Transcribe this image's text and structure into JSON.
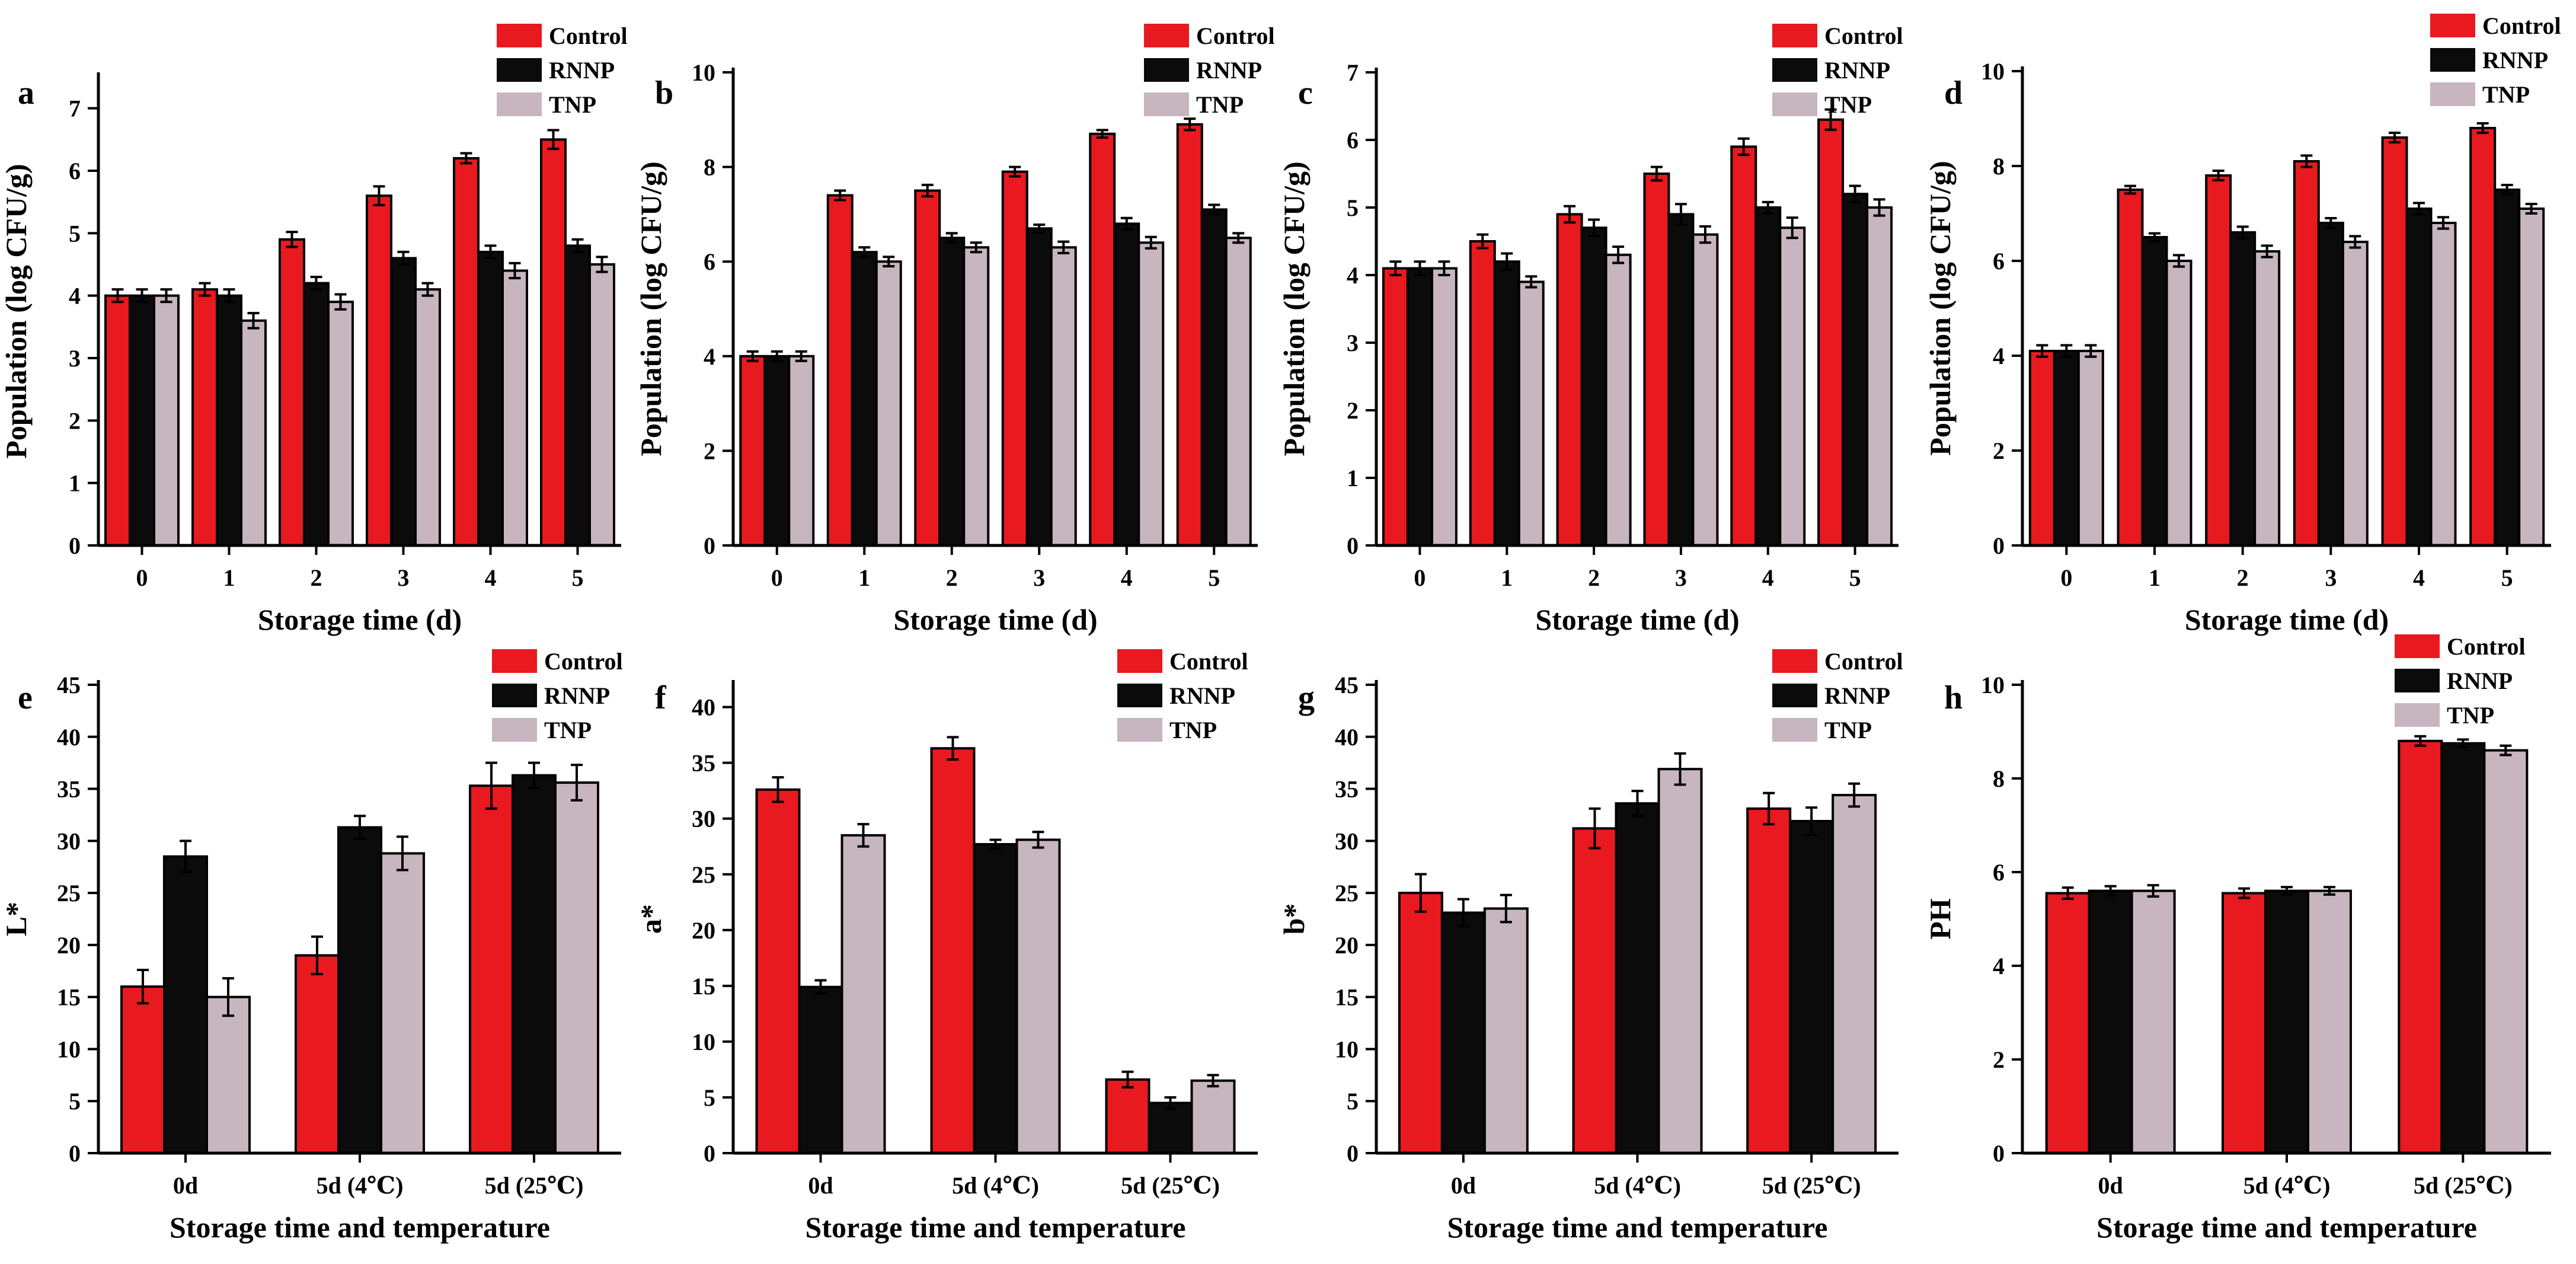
{
  "figure": {
    "legend": [
      {
        "name": "Control",
        "color": "#e8191f"
      },
      {
        "name": "RNNP",
        "color": "#0b0b0b"
      },
      {
        "name": "TNP",
        "color": "#c7b5bf"
      }
    ]
  },
  "chart_data": [
    {
      "panel": "a",
      "type": "bar",
      "categories": [
        "0",
        "1",
        "2",
        "3",
        "4",
        "5"
      ],
      "xlabel": "Storage time (d)",
      "ylabel": "Population (log CFU/g)",
      "ylim": [
        0,
        7.5
      ],
      "yticks": [
        0,
        1,
        2,
        3,
        4,
        5,
        6,
        7
      ],
      "series": [
        {
          "name": "Control",
          "values": [
            4.0,
            4.1,
            4.9,
            5.6,
            6.2,
            6.5
          ],
          "errors": [
            0.1,
            0.1,
            0.12,
            0.15,
            0.08,
            0.15
          ]
        },
        {
          "name": "RNNP",
          "values": [
            4.0,
            4.0,
            4.2,
            4.6,
            4.7,
            4.8
          ],
          "errors": [
            0.1,
            0.1,
            0.1,
            0.1,
            0.1,
            0.1
          ]
        },
        {
          "name": "TNP",
          "values": [
            4.0,
            3.6,
            3.9,
            4.1,
            4.4,
            4.5
          ],
          "errors": [
            0.1,
            0.12,
            0.12,
            0.1,
            0.12,
            0.12
          ]
        }
      ]
    },
    {
      "panel": "b",
      "type": "bar",
      "categories": [
        "0",
        "1",
        "2",
        "3",
        "4",
        "5"
      ],
      "xlabel": "Storage time (d)",
      "ylabel": "Population (log CFU/g)",
      "ylim": [
        0,
        10
      ],
      "yticks": [
        0,
        2,
        4,
        6,
        8,
        10
      ],
      "series": [
        {
          "name": "Control",
          "values": [
            4.0,
            7.4,
            7.5,
            7.9,
            8.7,
            8.9
          ],
          "errors": [
            0.1,
            0.1,
            0.12,
            0.1,
            0.08,
            0.12
          ]
        },
        {
          "name": "RNNP",
          "values": [
            4.0,
            6.2,
            6.5,
            6.7,
            6.8,
            7.1
          ],
          "errors": [
            0.1,
            0.1,
            0.1,
            0.08,
            0.12,
            0.1
          ]
        },
        {
          "name": "TNP",
          "values": [
            4.0,
            6.0,
            6.3,
            6.3,
            6.4,
            6.5
          ],
          "errors": [
            0.1,
            0.1,
            0.1,
            0.12,
            0.12,
            0.1
          ]
        }
      ]
    },
    {
      "panel": "c",
      "type": "bar",
      "categories": [
        "0",
        "1",
        "2",
        "3",
        "4",
        "5"
      ],
      "xlabel": "Storage time (d)",
      "ylabel": "Population (log CFU/g)",
      "ylim": [
        0,
        7
      ],
      "yticks": [
        0,
        1,
        2,
        3,
        4,
        5,
        6,
        7
      ],
      "series": [
        {
          "name": "Control",
          "values": [
            4.1,
            4.5,
            4.9,
            5.5,
            5.9,
            6.3
          ],
          "errors": [
            0.1,
            0.1,
            0.12,
            0.1,
            0.12,
            0.15
          ]
        },
        {
          "name": "RNNP",
          "values": [
            4.1,
            4.2,
            4.7,
            4.9,
            5.0,
            5.2
          ],
          "errors": [
            0.1,
            0.12,
            0.12,
            0.15,
            0.08,
            0.12
          ]
        },
        {
          "name": "TNP",
          "values": [
            4.1,
            3.9,
            4.3,
            4.6,
            4.7,
            5.0
          ],
          "errors": [
            0.1,
            0.08,
            0.12,
            0.12,
            0.15,
            0.12
          ]
        }
      ]
    },
    {
      "panel": "d",
      "type": "bar",
      "categories": [
        "0",
        "1",
        "2",
        "3",
        "4",
        "5"
      ],
      "xlabel": "Storage time (d)",
      "ylabel": "Population (log CFU/g)",
      "ylim": [
        0,
        10
      ],
      "yticks": [
        0,
        2,
        4,
        6,
        8,
        10
      ],
      "series": [
        {
          "name": "Control",
          "values": [
            4.1,
            7.5,
            7.8,
            8.1,
            8.6,
            8.8
          ],
          "errors": [
            0.12,
            0.08,
            0.1,
            0.12,
            0.1,
            0.1
          ]
        },
        {
          "name": "RNNP",
          "values": [
            4.1,
            6.5,
            6.6,
            6.8,
            7.1,
            7.5
          ],
          "errors": [
            0.12,
            0.08,
            0.12,
            0.1,
            0.12,
            0.1
          ]
        },
        {
          "name": "TNP",
          "values": [
            4.1,
            6.0,
            6.2,
            6.4,
            6.8,
            7.1
          ],
          "errors": [
            0.12,
            0.12,
            0.12,
            0.12,
            0.12,
            0.1
          ]
        }
      ]
    },
    {
      "panel": "e",
      "type": "bar",
      "categories": [
        "0d",
        "5d (4℃)",
        "5d (25℃)"
      ],
      "xlabel": "Storage time and temperature",
      "ylabel": "L*",
      "ylim": [
        0,
        45
      ],
      "yticks": [
        0,
        5,
        10,
        15,
        20,
        25,
        30,
        35,
        40,
        45
      ],
      "series": [
        {
          "name": "Control",
          "values": [
            16.0,
            19.0,
            35.3
          ],
          "errors": [
            1.6,
            1.8,
            2.2
          ]
        },
        {
          "name": "RNNP",
          "values": [
            28.5,
            31.3,
            36.3
          ],
          "errors": [
            1.5,
            1.1,
            1.2
          ]
        },
        {
          "name": "TNP",
          "values": [
            15.0,
            28.8,
            35.6
          ],
          "errors": [
            1.8,
            1.6,
            1.7
          ]
        }
      ]
    },
    {
      "panel": "f",
      "type": "bar",
      "categories": [
        "0d",
        "5d (4℃)",
        "5d (25℃)"
      ],
      "xlabel": "Storage time and temperature",
      "ylabel": "a*",
      "ylim": [
        0,
        42
      ],
      "yticks": [
        0,
        5,
        10,
        15,
        20,
        25,
        30,
        35,
        40
      ],
      "series": [
        {
          "name": "Control",
          "values": [
            32.6,
            36.3,
            6.6
          ],
          "errors": [
            1.1,
            1.0,
            0.7
          ]
        },
        {
          "name": "RNNP",
          "values": [
            14.9,
            27.7,
            4.5
          ],
          "errors": [
            0.6,
            0.4,
            0.5
          ]
        },
        {
          "name": "TNP",
          "values": [
            28.5,
            28.1,
            6.5
          ],
          "errors": [
            1.0,
            0.7,
            0.5
          ]
        }
      ]
    },
    {
      "panel": "g",
      "type": "bar",
      "categories": [
        "0d",
        "5d (4℃)",
        "5d (25℃)"
      ],
      "xlabel": "Storage time and temperature",
      "ylabel": "b*",
      "ylim": [
        0,
        45
      ],
      "yticks": [
        0,
        5,
        10,
        15,
        20,
        25,
        30,
        35,
        40,
        45
      ],
      "series": [
        {
          "name": "Control",
          "values": [
            25.0,
            31.2,
            33.1
          ],
          "errors": [
            1.8,
            1.9,
            1.5
          ]
        },
        {
          "name": "RNNP",
          "values": [
            23.1,
            33.6,
            31.9
          ],
          "errors": [
            1.3,
            1.2,
            1.3
          ]
        },
        {
          "name": "TNP",
          "values": [
            23.5,
            36.9,
            34.4
          ],
          "errors": [
            1.3,
            1.5,
            1.1
          ]
        }
      ]
    },
    {
      "panel": "h",
      "type": "bar",
      "categories": [
        "0d",
        "5d (4℃)",
        "5d (25℃)"
      ],
      "xlabel": "Storage time and temperature",
      "ylabel": "PH",
      "ylim": [
        0,
        10
      ],
      "yticks": [
        0,
        2,
        4,
        6,
        8,
        10
      ],
      "series": [
        {
          "name": "Control",
          "values": [
            5.55,
            5.55,
            8.8
          ],
          "errors": [
            0.12,
            0.1,
            0.1
          ]
        },
        {
          "name": "RNNP",
          "values": [
            5.6,
            5.6,
            8.75
          ],
          "errors": [
            0.1,
            0.08,
            0.08
          ]
        },
        {
          "name": "TNP",
          "values": [
            5.6,
            5.6,
            8.6
          ],
          "errors": [
            0.12,
            0.08,
            0.1
          ]
        }
      ]
    }
  ]
}
